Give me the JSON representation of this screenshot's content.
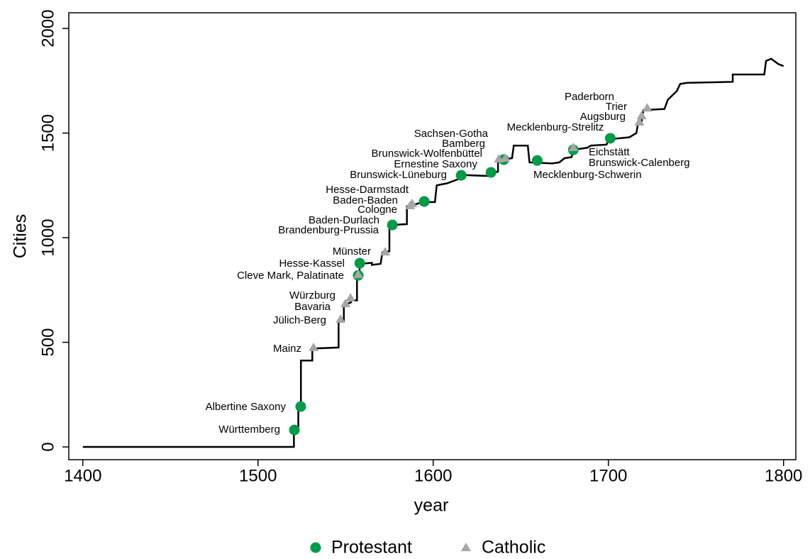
{
  "chart_data": {
    "type": "line",
    "xlabel": "year",
    "ylabel": "Cities",
    "xlim": [
      1392,
      1807
    ],
    "ylim": [
      -61,
      2075
    ],
    "xticks": [
      1400,
      1500,
      1600,
      1700,
      1800
    ],
    "yticks": [
      0,
      500,
      1000,
      1500,
      2000
    ],
    "legend": "bottom",
    "line": {
      "color": "#000000",
      "x": [
        1400,
        1520.5,
        1520.5,
        1523,
        1523,
        1524.5,
        1524.5,
        1531,
        1531,
        1546,
        1546,
        1549,
        1549,
        1553,
        1553,
        1556.5,
        1556.5,
        1558,
        1558,
        1565,
        1565,
        1570,
        1571,
        1575,
        1575,
        1585,
        1585,
        1590,
        1594,
        1601,
        1602,
        1608,
        1616,
        1616,
        1631,
        1631,
        1637,
        1637,
        1645,
        1646,
        1654,
        1655,
        1668,
        1672,
        1675,
        1679,
        1680,
        1688,
        1690,
        1699,
        1700,
        1712,
        1716,
        1717,
        1719,
        1720,
        1732,
        1734,
        1739,
        1741,
        1745,
        1771,
        1771,
        1789,
        1790,
        1793,
        1797,
        1800
      ],
      "values": [
        0,
        0,
        80,
        80,
        190,
        190,
        413,
        413,
        470,
        475,
        600,
        605,
        680,
        690,
        700,
        700,
        820,
        820,
        875,
        880,
        870,
        875,
        930,
        935,
        1060,
        1065,
        1150,
        1160,
        1170,
        1170,
        1250,
        1260,
        1285,
        1300,
        1295,
        1310,
        1315,
        1370,
        1380,
        1440,
        1440,
        1360,
        1355,
        1360,
        1380,
        1385,
        1420,
        1430,
        1440,
        1445,
        1470,
        1480,
        1500,
        1550,
        1555,
        1610,
        1615,
        1660,
        1700,
        1735,
        1740,
        1745,
        1780,
        1780,
        1845,
        1855,
        1830,
        1820
      ]
    },
    "series": [
      {
        "name": "Protestant",
        "color": "#009b48",
        "marker": "circle",
        "x": [
          1520.8,
          1524.4,
          1557.2,
          1558.1,
          1576.7,
          1594.9,
          1616,
          1633,
          1640.3,
          1659.4,
          1680,
          1701.1
        ],
        "values": [
          81,
          193,
          820,
          878,
          1061,
          1173,
          1298,
          1312,
          1373,
          1369,
          1420,
          1475
        ]
      },
      {
        "name": "Catholic",
        "color": "#a6a6a6",
        "marker": "triangle",
        "x": [
          1531.7,
          1547.1,
          1549.9,
          1552.8,
          1557.2,
          1572.6,
          1586.8,
          1588,
          1637.5,
          1641.1,
          1680,
          1717.7,
          1719,
          1722.2
        ],
        "values": [
          475,
          610,
          685,
          712,
          824,
          932,
          1153,
          1163,
          1376,
          1380,
          1431,
          1553,
          1583,
          1620
        ]
      }
    ],
    "annotations": [
      "Württemberg",
      "Albertine Saxony",
      "Mainz",
      "Jülich-Berg",
      "Bavaria",
      "Würzburg",
      "Cleve Mark, Palatinate",
      "Hesse-Kassel",
      "Münster",
      "Brandenburg-Prussia",
      "Baden-Durlach",
      "Cologne",
      "Baden-Baden",
      "Hesse-Darmstadt",
      "Brunswick-Lüneburg",
      "Ernestine Saxony",
      "Brunswick-Wolfenbüttel",
      "Bamberg",
      "Sachsen-Gotha",
      "Mecklenburg-Strelitz",
      "Eichstätt",
      "Brunswick-Calenberg",
      "Mecklenburg-Schwerin",
      "Paderborn",
      "Trier",
      "Augsburg"
    ]
  }
}
